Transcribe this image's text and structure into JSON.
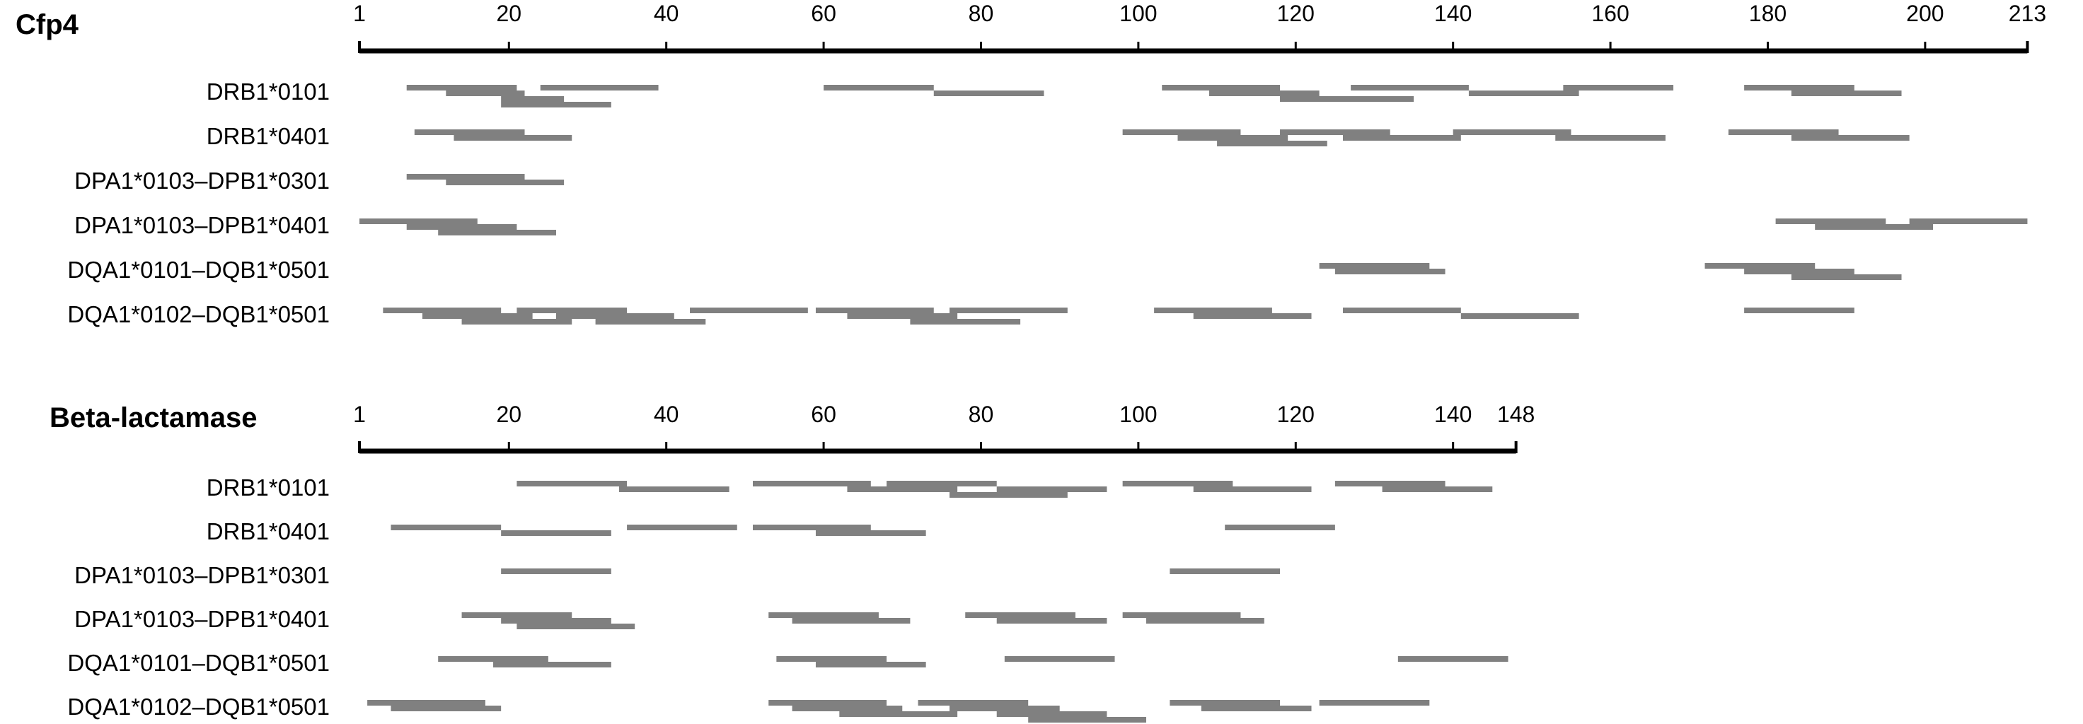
{
  "colors": {
    "segment": "#808080",
    "axis": "#000000",
    "text": "#000000"
  },
  "panels": [
    {
      "title": "Cfp4",
      "length": 213,
      "tick_labels": [
        "1",
        "20",
        "40",
        "60",
        "80",
        "100",
        "120",
        "140",
        "160",
        "180",
        "200",
        "213"
      ],
      "rows": [
        {
          "label": "DRB1*0101",
          "segments": [
            [
              7,
              21
            ],
            [
              12,
              22
            ],
            [
              19,
              27
            ],
            [
              24,
              39
            ],
            [
              19,
              33
            ],
            [
              60,
              74
            ],
            [
              74,
              88
            ],
            [
              103,
              118
            ],
            [
              109,
              123
            ],
            [
              118,
              135
            ],
            [
              127,
              142
            ],
            [
              142,
              156
            ],
            [
              154,
              168
            ],
            [
              177,
              191
            ],
            [
              183,
              197
            ]
          ]
        },
        {
          "label": "DRB1*0401",
          "segments": [
            [
              8,
              22
            ],
            [
              13,
              28
            ],
            [
              98,
              113
            ],
            [
              105,
              119
            ],
            [
              110,
              124
            ],
            [
              118,
              132
            ],
            [
              126,
              141
            ],
            [
              140,
              155
            ],
            [
              153,
              167
            ],
            [
              175,
              189
            ],
            [
              183,
              198
            ]
          ]
        },
        {
          "label": "DPA1*0103–DPB1*0301",
          "segments": [
            [
              7,
              22
            ],
            [
              12,
              27
            ]
          ]
        },
        {
          "label": "DPA1*0103–DPB1*0401",
          "segments": [
            [
              1,
              16
            ],
            [
              7,
              21
            ],
            [
              11,
              26
            ],
            [
              181,
              195
            ],
            [
              186,
              201
            ],
            [
              198,
              213
            ]
          ]
        },
        {
          "label": "DQA1*0101–DQB1*0501",
          "segments": [
            [
              123,
              137
            ],
            [
              125,
              139
            ],
            [
              172,
              186
            ],
            [
              177,
              191
            ],
            [
              183,
              197
            ]
          ]
        },
        {
          "label": "DQA1*0102–DQB1*0501",
          "segments": [
            [
              4,
              19
            ],
            [
              9,
              23
            ],
            [
              14,
              28
            ],
            [
              21,
              35
            ],
            [
              26,
              41
            ],
            [
              31,
              45
            ],
            [
              43,
              58
            ],
            [
              59,
              74
            ],
            [
              63,
              77
            ],
            [
              71,
              85
            ],
            [
              76,
              91
            ],
            [
              102,
              117
            ],
            [
              107,
              122
            ],
            [
              126,
              141
            ],
            [
              141,
              156
            ],
            [
              177,
              191
            ]
          ]
        }
      ]
    },
    {
      "title": "Beta-lactamase",
      "length": 148,
      "tick_labels": [
        "1",
        "20",
        "40",
        "60",
        "80",
        "100",
        "120",
        "140",
        "148"
      ],
      "rows": [
        {
          "label": "DRB1*0101",
          "segments": [
            [
              21,
              35
            ],
            [
              34,
              48
            ],
            [
              51,
              66
            ],
            [
              63,
              77
            ],
            [
              68,
              82
            ],
            [
              76,
              91
            ],
            [
              82,
              96
            ],
            [
              98,
              112
            ],
            [
              107,
              122
            ],
            [
              125,
              139
            ],
            [
              131,
              145
            ]
          ]
        },
        {
          "label": "DRB1*0401",
          "segments": [
            [
              5,
              19
            ],
            [
              19,
              33
            ],
            [
              35,
              49
            ],
            [
              51,
              66
            ],
            [
              59,
              73
            ],
            [
              111,
              125
            ]
          ]
        },
        {
          "label": "DPA1*0103–DPB1*0301",
          "segments": [
            [
              19,
              33
            ],
            [
              104,
              118
            ]
          ]
        },
        {
          "label": "DPA1*0103–DPB1*0401",
          "segments": [
            [
              14,
              28
            ],
            [
              19,
              33
            ],
            [
              21,
              36
            ],
            [
              53,
              67
            ],
            [
              56,
              71
            ],
            [
              78,
              92
            ],
            [
              82,
              96
            ],
            [
              98,
              113
            ],
            [
              101,
              116
            ]
          ]
        },
        {
          "label": "DQA1*0101–DQB1*0501",
          "segments": [
            [
              11,
              25
            ],
            [
              18,
              33
            ],
            [
              54,
              68
            ],
            [
              59,
              73
            ],
            [
              83,
              97
            ],
            [
              133,
              147
            ]
          ]
        },
        {
          "label": "DQA1*0102–DQB1*0501",
          "segments": [
            [
              2,
              17
            ],
            [
              5,
              19
            ],
            [
              53,
              68
            ],
            [
              56,
              70
            ],
            [
              62,
              77
            ],
            [
              72,
              86
            ],
            [
              76,
              90
            ],
            [
              82,
              96
            ],
            [
              86,
              101
            ],
            [
              104,
              118
            ],
            [
              108,
              122
            ],
            [
              123,
              137
            ]
          ]
        }
      ]
    }
  ]
}
